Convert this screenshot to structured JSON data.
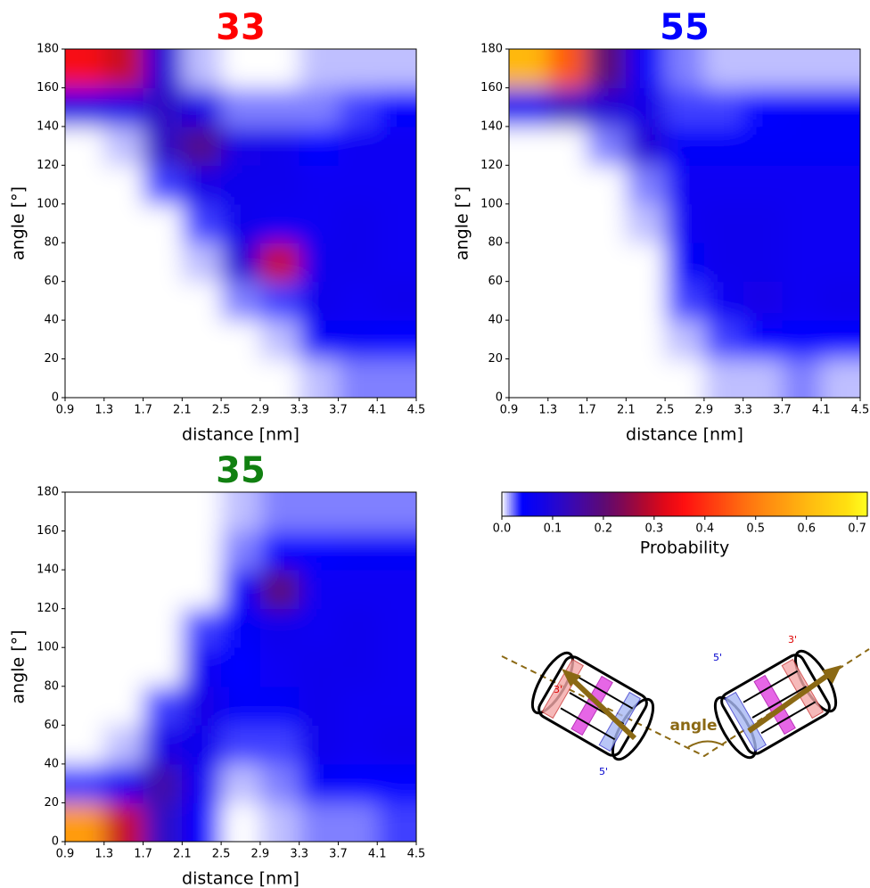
{
  "chart_data": [
    {
      "type": "heatmap",
      "title": "33",
      "title_color": "#ff0000",
      "xlabel": "distance [nm]",
      "ylabel": "angle [°]",
      "xbins": [
        0.9,
        1.3,
        1.7,
        2.1,
        2.5,
        2.9,
        3.3,
        3.7,
        4.1,
        4.5
      ],
      "ybins": [
        0,
        20,
        40,
        60,
        80,
        100,
        120,
        140,
        160,
        180
      ],
      "values": [
        [
          0,
          0,
          0,
          0,
          0,
          0,
          0.01,
          0.02,
          0.02
        ],
        [
          0,
          0,
          0,
          0,
          0,
          0.01,
          0.05,
          0.05,
          0.04
        ],
        [
          0,
          0,
          0,
          0,
          0.02,
          0.03,
          0.07,
          0.06,
          0.07
        ],
        [
          0,
          0,
          0,
          0.01,
          0.1,
          0.3,
          0.07,
          0.07,
          0.06
        ],
        [
          0,
          0,
          0,
          0.03,
          0.07,
          0.06,
          0.06,
          0.07,
          0.06
        ],
        [
          0,
          0,
          0.03,
          0.08,
          0.07,
          0.07,
          0.06,
          0.06,
          0.06
        ],
        [
          0,
          0.01,
          0.12,
          0.18,
          0.08,
          0.07,
          0.04,
          0.06,
          0.06
        ],
        [
          0.08,
          0.08,
          0.12,
          0.08,
          0.02,
          0.02,
          0.02,
          0.03,
          0.04
        ],
        [
          0.35,
          0.3,
          0.1,
          0.01,
          0,
          0,
          0.01,
          0.01,
          0.01
        ]
      ],
      "xlim": [
        0.9,
        4.5
      ],
      "xticks": [
        0.9,
        1.3,
        1.7,
        2.1,
        2.5,
        2.9,
        3.3,
        3.7,
        4.1,
        4.5
      ],
      "ylim": [
        0,
        180
      ],
      "yticks": [
        0,
        20,
        40,
        60,
        80,
        100,
        120,
        140,
        160,
        180
      ]
    },
    {
      "type": "heatmap",
      "title": "55",
      "title_color": "#0000ff",
      "xlabel": "distance [nm]",
      "ylabel": "angle [°]",
      "xbins": [
        0.9,
        1.3,
        1.7,
        2.1,
        2.5,
        2.9,
        3.3,
        3.7,
        4.1,
        4.5
      ],
      "ybins": [
        0,
        20,
        40,
        60,
        80,
        100,
        120,
        140,
        160,
        180
      ],
      "values": [
        [
          0,
          0,
          0,
          0,
          0,
          0.01,
          0.01,
          0.02,
          0.01
        ],
        [
          0,
          0,
          0,
          0,
          0.01,
          0.03,
          0.04,
          0.04,
          0.04
        ],
        [
          0,
          0,
          0,
          0,
          0.03,
          0.06,
          0.08,
          0.06,
          0.07
        ],
        [
          0,
          0,
          0,
          0,
          0.05,
          0.07,
          0.07,
          0.06,
          0.06
        ],
        [
          0,
          0,
          0,
          0.01,
          0.06,
          0.07,
          0.07,
          0.06,
          0.06
        ],
        [
          0,
          0,
          0,
          0.02,
          0.06,
          0.06,
          0.06,
          0.06,
          0.06
        ],
        [
          0,
          0,
          0.02,
          0.1,
          0.05,
          0.05,
          0.05,
          0.05,
          0.05
        ],
        [
          0.06,
          0.12,
          0.1,
          0.08,
          0.03,
          0.03,
          0.04,
          0.05,
          0.05
        ],
        [
          0.6,
          0.45,
          0.2,
          0.05,
          0.02,
          0.01,
          0.01,
          0.01,
          0.01
        ]
      ],
      "xlim": [
        0.9,
        4.5
      ],
      "xticks": [
        0.9,
        1.3,
        1.7,
        2.1,
        2.5,
        2.9,
        3.3,
        3.7,
        4.1,
        4.5
      ],
      "ylim": [
        0,
        180
      ],
      "yticks": [
        0,
        20,
        40,
        60,
        80,
        100,
        120,
        140,
        160,
        180
      ]
    },
    {
      "type": "heatmap",
      "title": "35",
      "title_color": "#118011",
      "xlabel": "distance [nm]",
      "ylabel": "angle [°]",
      "xbins": [
        0.9,
        1.3,
        1.7,
        2.1,
        2.5,
        2.9,
        3.3,
        3.7,
        4.1,
        4.5
      ],
      "ybins": [
        0,
        20,
        40,
        60,
        80,
        100,
        120,
        140,
        160,
        180
      ],
      "values": [
        [
          0.55,
          0.3,
          0.12,
          0.04,
          0,
          0.01,
          0.02,
          0.02,
          0.03
        ],
        [
          0.03,
          0.06,
          0.15,
          0.06,
          0.01,
          0.02,
          0.05,
          0.04,
          0.04
        ],
        [
          0,
          0.01,
          0.08,
          0.07,
          0.03,
          0.03,
          0.07,
          0.06,
          0.07
        ],
        [
          0,
          0,
          0.03,
          0.08,
          0.05,
          0.05,
          0.07,
          0.06,
          0.06
        ],
        [
          0,
          0,
          0,
          0.06,
          0.04,
          0.06,
          0.07,
          0.07,
          0.06
        ],
        [
          0,
          0,
          0,
          0.03,
          0.05,
          0.07,
          0.06,
          0.07,
          0.06
        ],
        [
          0,
          0,
          0,
          0,
          0.05,
          0.2,
          0.06,
          0.06,
          0.06
        ],
        [
          0,
          0,
          0,
          0,
          0.02,
          0.04,
          0.04,
          0.05,
          0.05
        ],
        [
          0,
          0,
          0,
          0,
          0.01,
          0.02,
          0.02,
          0.02,
          0.02
        ]
      ],
      "xlim": [
        0.9,
        4.5
      ],
      "xticks": [
        0.9,
        1.3,
        1.7,
        2.1,
        2.5,
        2.9,
        3.3,
        3.7,
        4.1,
        4.5
      ],
      "ylim": [
        0,
        180
      ],
      "yticks": [
        0,
        20,
        40,
        60,
        80,
        100,
        120,
        140,
        160,
        180
      ]
    }
  ],
  "colorbar": {
    "label": "Probability",
    "lim": [
      0,
      0.72
    ],
    "ticks": [
      {
        "value": 0,
        "label": "0.0"
      },
      0.1,
      0.2,
      0.3,
      0.4,
      0.5,
      0.6,
      0.7
    ],
    "colors": [
      "#ffffff",
      "#0000ff",
      "#1404e6",
      "#2e08c4",
      "#48089c",
      "#5c0a74",
      "#820852",
      "#b00830",
      "#e00818",
      "#ff1010",
      "#ff3010",
      "#ff5010",
      "#ff7010",
      "#ff8a10",
      "#ffa010",
      "#ffb810",
      "#ffcc10",
      "#ffe010",
      "#ffff20"
    ]
  },
  "diagram": {
    "label": "angle",
    "prime_labels": [
      "3'",
      "5'",
      "5'",
      "3'"
    ]
  }
}
